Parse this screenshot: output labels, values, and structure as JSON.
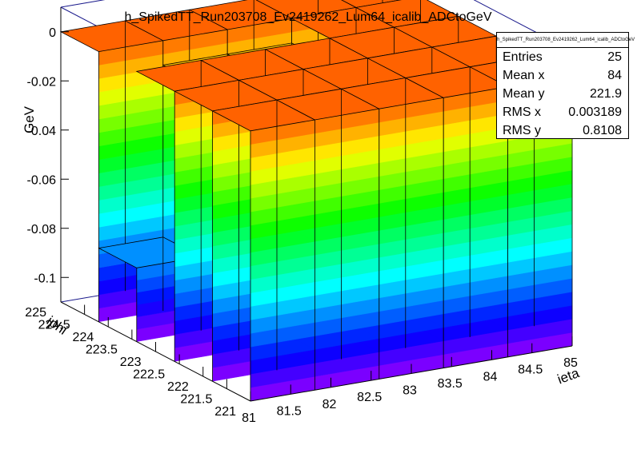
{
  "chart_data": {
    "type": "lego3d",
    "title": "h_SpikedTT_Run203708_Ev2419262_Lum64_icalib_ADCtoGeV",
    "xlabel": "ieta",
    "ylabel": "iphi",
    "zlabel": "GeV",
    "xlim": [
      81,
      85
    ],
    "ylim": [
      221,
      225
    ],
    "zlim": [
      -0.11,
      0.01
    ],
    "x_bins": [
      81,
      81.8,
      82.6,
      83.4,
      84.2,
      85
    ],
    "y_bins": [
      221,
      221.8,
      222.6,
      223.4,
      224.2,
      225
    ],
    "x_ticks": [
      "81",
      "81.5",
      "82",
      "82.5",
      "83",
      "83.5",
      "84",
      "84.5",
      "85"
    ],
    "y_ticks": [
      "221",
      "221.5",
      "222",
      "222.5",
      "223",
      "223.5",
      "224",
      "224.5",
      "225"
    ],
    "z_ticks": [
      "0",
      "-0.02",
      "-0.04",
      "-0.06",
      "-0.08",
      "-0.1"
    ],
    "values": [
      [
        0,
        0,
        0,
        0,
        0
      ],
      [
        0,
        0,
        0,
        0,
        0
      ],
      [
        0,
        0,
        0,
        0,
        0
      ],
      [
        -0.08,
        -0.01,
        -0.01,
        0,
        0
      ],
      [
        0,
        0,
        0,
        0,
        0
      ]
    ]
  },
  "stats": {
    "title": "h_SpikedTT_Run203708_Ev2419262_Lum64_icalib_ADCtoGeV",
    "entries_label": "Entries",
    "entries": "25",
    "meanx_label": "Mean x",
    "meanx": "84",
    "meany_label": "Mean y",
    "meany": "221.9",
    "rmsx_label": "RMS x",
    "rmsx": "0.003189",
    "rmsy_label": "RMS y",
    "rmsy": "0.8108"
  }
}
